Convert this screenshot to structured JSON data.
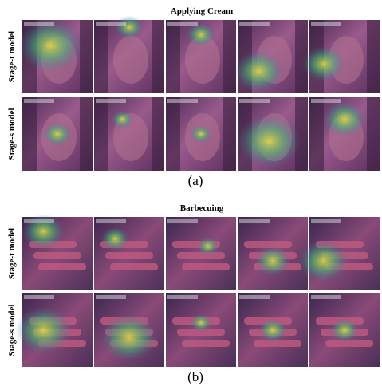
{
  "panels": [
    {
      "title": "Applying Cream",
      "rows": [
        {
          "label": "Stage-t model"
        },
        {
          "label": "Stage-s model"
        }
      ],
      "caption": "(a)"
    },
    {
      "title": "Barbecuing",
      "rows": [
        {
          "label": "Stage-t model"
        },
        {
          "label": "Stage-s model"
        }
      ],
      "caption": "(b)"
    }
  ]
}
